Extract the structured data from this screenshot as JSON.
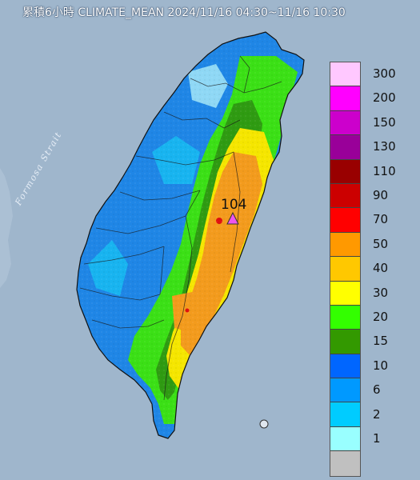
{
  "title": "累積6小時 CLIMATE_MEAN 2024/11/16 04:30~11/16 10:30",
  "sea_label": "Formosa Strait",
  "max_marker": {
    "value": "104"
  },
  "legend": {
    "levels": [
      {
        "label": "300",
        "color": "#ffc8ff"
      },
      {
        "label": "200",
        "color": "#ff00ff"
      },
      {
        "label": "150",
        "color": "#cc00cc"
      },
      {
        "label": "130",
        "color": "#990099"
      },
      {
        "label": "110",
        "color": "#990000"
      },
      {
        "label": "90",
        "color": "#cc0000"
      },
      {
        "label": "70",
        "color": "#ff0000"
      },
      {
        "label": "50",
        "color": "#ff9900"
      },
      {
        "label": "40",
        "color": "#ffc800"
      },
      {
        "label": "30",
        "color": "#ffff00"
      },
      {
        "label": "20",
        "color": "#33ff00"
      },
      {
        "label": "15",
        "color": "#339900"
      },
      {
        "label": "10",
        "color": "#0066ff"
      },
      {
        "label": "6",
        "color": "#0099ff"
      },
      {
        "label": "2",
        "color": "#00ccff"
      },
      {
        "label": "1",
        "color": "#99ffff"
      },
      {
        "label": "",
        "color": "#c0c0c0"
      }
    ]
  },
  "colors": {
    "sea": "#9fb6cc",
    "zone_blue": "#1f86e6",
    "zone_green": "#3be016",
    "zone_darkgreen": "#2f9b12",
    "zone_yellow": "#f5e600",
    "zone_orange": "#f39b1d",
    "zone_red": "#e01010",
    "marker": "#ee55ee"
  }
}
